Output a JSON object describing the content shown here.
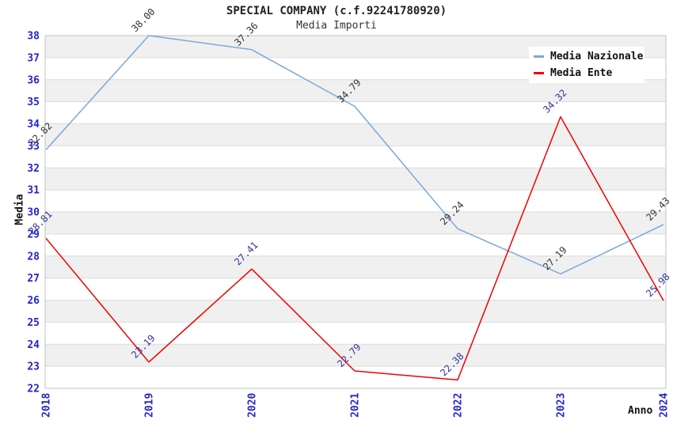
{
  "title": "SPECIAL COMPANY (c.f.92241780920)",
  "subtitle": "Media Importi",
  "legend": {
    "items": [
      {
        "label": "Media Nazionale",
        "color": "#7aa9da"
      },
      {
        "label": "Media Ente",
        "color": "#ee0000"
      }
    ]
  },
  "chart_data": {
    "type": "line",
    "title": "SPECIAL COMPANY (c.f.92241780920)",
    "subtitle": "Media Importi",
    "xlabel": "Anno",
    "ylabel": "Media",
    "categories": [
      "2018",
      "2019",
      "2020",
      "2021",
      "2022",
      "2023",
      "2024"
    ],
    "series": [
      {
        "name": "Media Nazionale",
        "color": "#7aa9da",
        "label_color": "#333333",
        "values": [
          32.82,
          38.0,
          37.36,
          34.79,
          29.24,
          27.19,
          29.43
        ]
      },
      {
        "name": "Media Ente",
        "color": "#ee0000",
        "label_color": "#333399",
        "values": [
          28.81,
          23.19,
          27.41,
          22.79,
          22.38,
          34.32,
          25.98
        ]
      }
    ],
    "ylim": [
      22,
      38
    ],
    "ytick_step": 1,
    "grid": "horizontal-bands",
    "legend_position": "top-right",
    "colors": {
      "axis_text": "#2525cd",
      "band": "#f0f0f0",
      "grid": "#dcdcdc",
      "border": "#c2c2c2",
      "baseline": "#999999"
    }
  }
}
